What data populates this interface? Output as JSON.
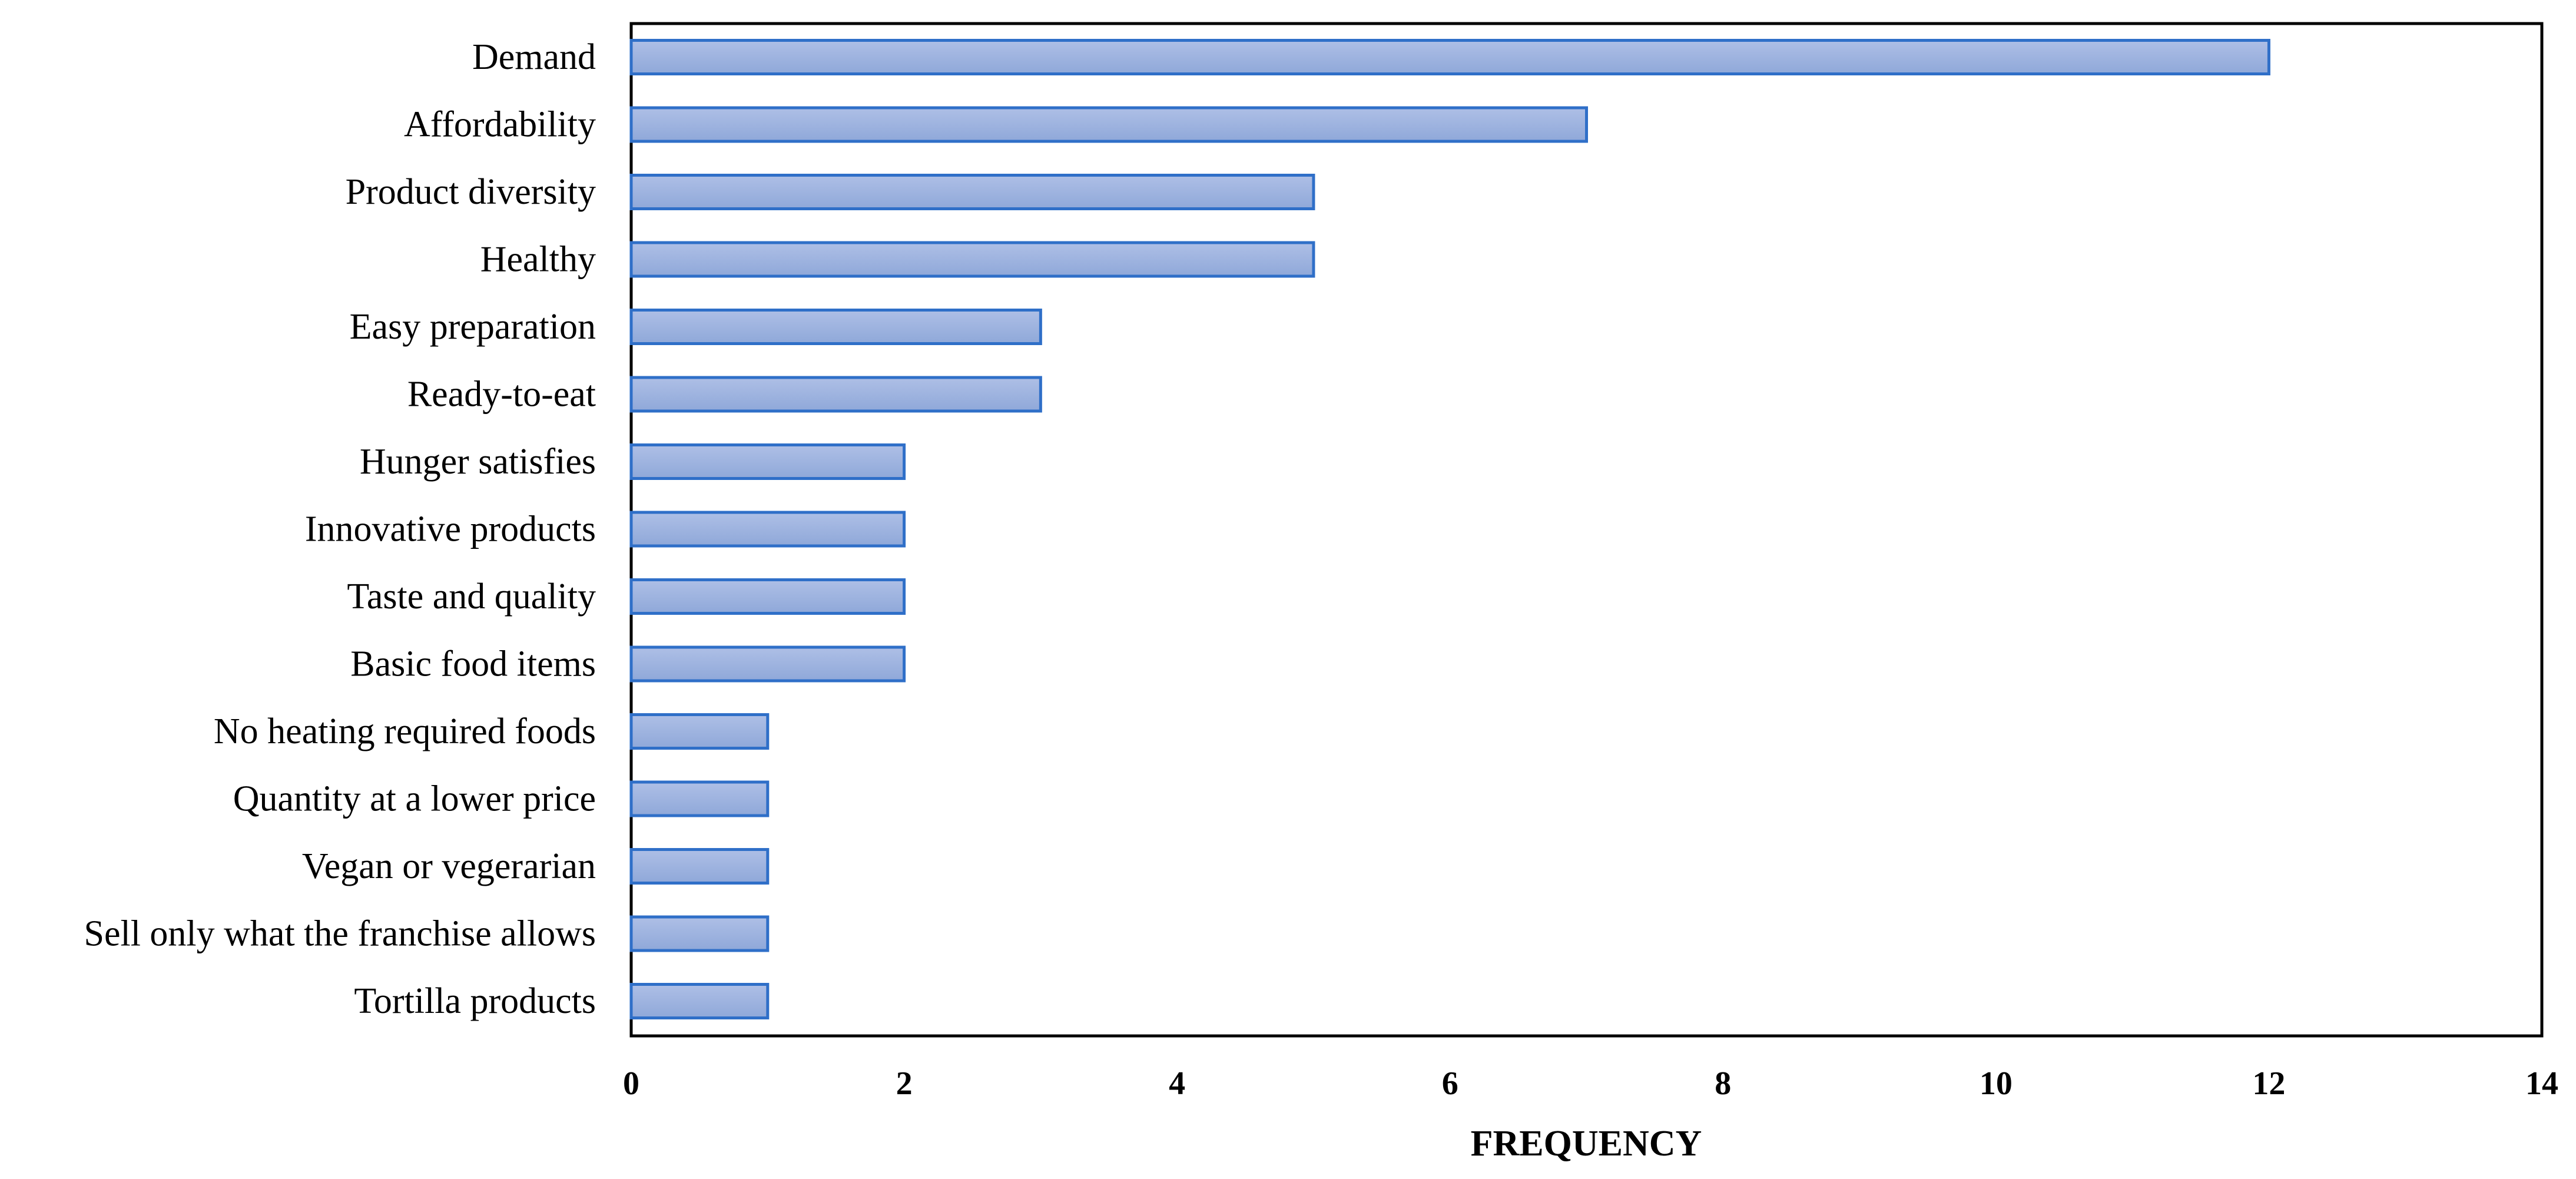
{
  "chart_data": {
    "type": "bar",
    "orientation": "horizontal",
    "categories": [
      "Demand",
      "Affordability",
      "Product diversity",
      "Healthy",
      "Easy preparation",
      "Ready-to-eat",
      "Hunger satisfies",
      "Innovative products",
      "Taste and quality",
      "Basic food items",
      "No heating required foods",
      "Quantity at a lower price",
      "Vegan or vegerarian",
      "Sell only what the franchise allows",
      "Tortilla products"
    ],
    "values": [
      12,
      7,
      5,
      5,
      3,
      3,
      2,
      2,
      2,
      2,
      1,
      1,
      1,
      1,
      1
    ],
    "xlabel": "FREQUENCY",
    "ylabel": "",
    "xlim": [
      0,
      14
    ],
    "xticks": [
      "0",
      "2",
      "4",
      "6",
      "8",
      "10",
      "12",
      "14"
    ],
    "grid": false,
    "legend": "none",
    "bar_fill_top": "#aebfe6",
    "bar_fill_bottom": "#8fa8d9",
    "bar_stroke": "#2f6fc8"
  }
}
